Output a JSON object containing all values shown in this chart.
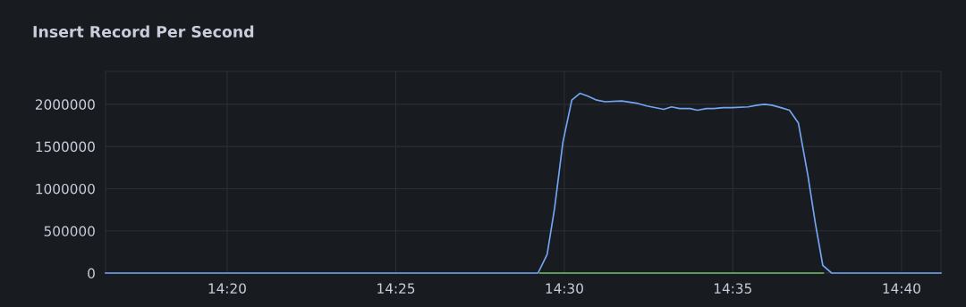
{
  "chart_data": {
    "type": "line",
    "title": "Insert Record Per Second",
    "series": [
      {
        "color": "#73a6f2",
        "x": [
          14.2732,
          14.487,
          14.4915,
          14.4952,
          14.4993,
          14.5037,
          14.5077,
          14.5114,
          14.516,
          14.5202,
          14.5283,
          14.5364,
          14.5408,
          14.5492,
          14.553,
          14.557,
          14.5622,
          14.5658,
          14.5703,
          14.574,
          14.5784,
          14.5828,
          14.5909,
          14.5953,
          14.599,
          14.6027,
          14.6071,
          14.6113,
          14.6157,
          14.6204,
          14.6241,
          14.6278,
          14.6322,
          14.6862
        ],
        "values": [
          0,
          0,
          220000,
          770000,
          1550000,
          2050000,
          2130000,
          2100000,
          2050000,
          2030000,
          2040000,
          2010000,
          1980000,
          1940000,
          1970000,
          1950000,
          1950000,
          1930000,
          1950000,
          1950000,
          1960000,
          1960000,
          1970000,
          1990000,
          2000000,
          1990000,
          1960000,
          1930000,
          1780000,
          1160000,
          590000,
          90000,
          0,
          0
        ]
      },
      {
        "color": "#73bf69",
        "x": [
          14.488,
          14.628
        ],
        "values": [
          0,
          0
        ]
      }
    ],
    "xlim": [
      14.2732,
      14.6862
    ],
    "xticks": [
      {
        "value": 14.3333,
        "label": "14:20"
      },
      {
        "value": 14.4167,
        "label": "14:25"
      },
      {
        "value": 14.5,
        "label": "14:30"
      },
      {
        "value": 14.5833,
        "label": "14:35"
      },
      {
        "value": 14.6667,
        "label": "14:40"
      }
    ],
    "ylim": [
      0,
      2390000
    ],
    "yticks": [
      0,
      500000,
      1000000,
      1500000,
      2000000
    ],
    "grid": true,
    "marker": "none",
    "line_style": "solid"
  }
}
